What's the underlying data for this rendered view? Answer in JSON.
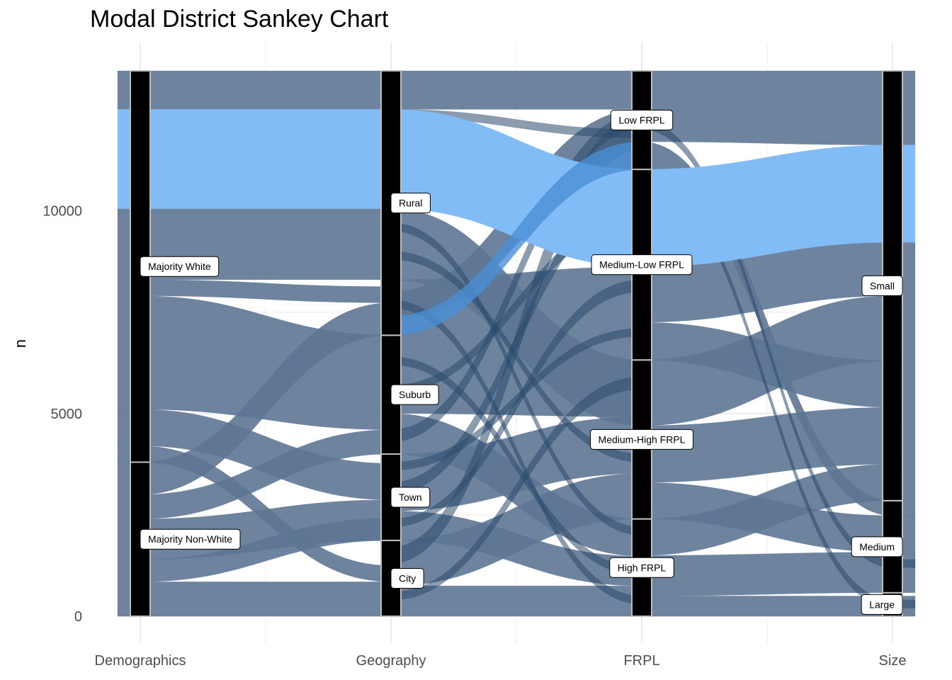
{
  "chart_data": {
    "type": "sankey",
    "title": "Modal District Sankey Chart",
    "xlabel": "",
    "ylabel": "n",
    "ylim": [
      0,
      13500
    ],
    "y_ticks": [
      0,
      5000,
      10000
    ],
    "axes": [
      "Demographics",
      "Geography",
      "FRPL",
      "Size"
    ],
    "total": 13450,
    "colors": {
      "flow": "#5d7594",
      "highlight": "#82bcf6",
      "highlight_frpl": "#4a8fd6",
      "node": "#000000",
      "node_border": "#bdbdbd",
      "grid": "#ebebeb"
    },
    "strata": [
      {
        "axis": "Demographics",
        "label": "Majority Non-White",
        "ymin": 0,
        "ymax": 3800
      },
      {
        "axis": "Demographics",
        "label": "Majority White",
        "ymin": 3800,
        "ymax": 13450
      },
      {
        "axis": "Geography",
        "label": "City",
        "ymin": 0,
        "ymax": 1870
      },
      {
        "axis": "Geography",
        "label": "Town",
        "ymin": 1870,
        "ymax": 4000
      },
      {
        "axis": "Geography",
        "label": "Suburb",
        "ymin": 4000,
        "ymax": 6930
      },
      {
        "axis": "Geography",
        "label": "Rural",
        "ymin": 6930,
        "ymax": 13450
      },
      {
        "axis": "FRPL",
        "label": "High FRPL",
        "ymin": 0,
        "ymax": 2400
      },
      {
        "axis": "FRPL",
        "label": "Medium-High FRPL",
        "ymin": 2400,
        "ymax": 6320
      },
      {
        "axis": "FRPL",
        "label": "Medium-Low FRPL",
        "ymin": 6320,
        "ymax": 11020
      },
      {
        "axis": "FRPL",
        "label": "Low FRPL",
        "ymin": 11020,
        "ymax": 13450
      },
      {
        "axis": "Size",
        "label": "Large",
        "ymin": 0,
        "ymax": 580
      },
      {
        "axis": "Size",
        "label": "Medium",
        "ymin": 580,
        "ymax": 2850
      },
      {
        "axis": "Size",
        "label": "Small",
        "ymin": 2850,
        "ymax": 13450
      }
    ],
    "flows": [
      {
        "from": [
          "Demographics",
          0,
          850
        ],
        "to": [
          "Geography",
          0,
          850
        ]
      },
      {
        "from": [
          "Demographics",
          850,
          1400
        ],
        "to": [
          "Geography",
          1870,
          2420
        ]
      },
      {
        "from": [
          "Demographics",
          1400,
          2400
        ],
        "to": [
          "Geography",
          1870,
          2870
        ]
      },
      {
        "from": [
          "Demographics",
          2400,
          3000
        ],
        "to": [
          "Geography",
          4000,
          4600
        ]
      },
      {
        "from": [
          "Demographics",
          3000,
          3800
        ],
        "to": [
          "Geography",
          6930,
          7730
        ]
      },
      {
        "from": [
          "Demographics",
          3800,
          4200
        ],
        "to": [
          "Geography",
          850,
          1250
        ]
      },
      {
        "from": [
          "Demographics",
          4200,
          5100
        ],
        "to": [
          "Geography",
          2870,
          3770
        ]
      },
      {
        "from": [
          "Demographics",
          5100,
          7900
        ],
        "to": [
          "Geography",
          4600,
          6930
        ]
      },
      {
        "from": [
          "Demographics",
          7900,
          8300
        ],
        "to": [
          "Geography",
          7730,
          8130
        ]
      },
      {
        "from": [
          "Demographics",
          8300,
          10050
        ],
        "to": [
          "Geography",
          8300,
          10050
        ]
      },
      {
        "from": [
          "Demographics",
          10050,
          12500
        ],
        "to": [
          "Geography",
          10050,
          12500
        ],
        "highlight": true
      },
      {
        "from": [
          "Demographics",
          12500,
          13450
        ],
        "to": [
          "Geography",
          12500,
          13450
        ]
      },
      {
        "from": [
          "Geography",
          0,
          750
        ],
        "to": [
          "FRPL",
          0,
          750
        ]
      },
      {
        "from": [
          "Geography",
          750,
          1870
        ],
        "to": [
          "FRPL",
          2400,
          3520
        ]
      },
      {
        "from": [
          "Geography",
          1870,
          2600
        ],
        "to": [
          "FRPL",
          750,
          1480
        ]
      },
      {
        "from": [
          "Geography",
          2600,
          4000
        ],
        "to": [
          "FRPL",
          3520,
          4920
        ]
      },
      {
        "from": [
          "Geography",
          4000,
          5000
        ],
        "to": [
          "FRPL",
          1480,
          2400
        ]
      },
      {
        "from": [
          "Geography",
          5000,
          6000
        ],
        "to": [
          "FRPL",
          4920,
          6320
        ]
      },
      {
        "from": [
          "Geography",
          6000,
          6930
        ],
        "to": [
          "FRPL",
          6320,
          7250
        ]
      },
      {
        "from": [
          "Geography",
          6930,
          8300
        ],
        "to": [
          "FRPL",
          7250,
          8620
        ]
      },
      {
        "from": [
          "Geography",
          8300,
          10050
        ],
        "to": [
          "FRPL",
          4700,
          6320
        ]
      },
      {
        "from": [
          "Geography",
          10050,
          12500
        ],
        "to": [
          "FRPL",
          8620,
          11020
        ],
        "highlight": true
      },
      {
        "from": [
          "Geography",
          12500,
          13450
        ],
        "to": [
          "FRPL",
          12500,
          13450
        ]
      },
      {
        "from": [
          "Geography",
          7300,
          8000
        ],
        "to": [
          "FRPL",
          11020,
          12500
        ]
      },
      {
        "from": [
          "FRPL",
          0,
          500
        ],
        "to": [
          "Size",
          0,
          500
        ]
      },
      {
        "from": [
          "FRPL",
          500,
          1500
        ],
        "to": [
          "Size",
          580,
          1580
        ]
      },
      {
        "from": [
          "FRPL",
          1500,
          2400
        ],
        "to": [
          "Size",
          2850,
          3750
        ]
      },
      {
        "from": [
          "FRPL",
          2400,
          3300
        ],
        "to": [
          "Size",
          1580,
          2480
        ]
      },
      {
        "from": [
          "FRPL",
          3300,
          4700
        ],
        "to": [
          "Size",
          3750,
          5150
        ]
      },
      {
        "from": [
          "FRPL",
          4700,
          6320
        ],
        "to": [
          "Size",
          6300,
          7900
        ]
      },
      {
        "from": [
          "FRPL",
          6320,
          7250
        ],
        "to": [
          "Size",
          5150,
          6300
        ]
      },
      {
        "from": [
          "FRPL",
          7250,
          8620
        ],
        "to": [
          "Size",
          7900,
          9220
        ]
      },
      {
        "from": [
          "FRPL",
          8620,
          11020
        ],
        "to": [
          "Size",
          9220,
          11620
        ],
        "highlight": true
      },
      {
        "from": [
          "FRPL",
          11020,
          11700
        ],
        "to": [
          "Size",
          2480,
          2850
        ]
      },
      {
        "from": [
          "FRPL",
          11700,
          13450
        ],
        "to": [
          "Size",
          11620,
          13450
        ]
      }
    ],
    "thin_flows": [
      {
        "from": [
          "Geography",
          1300,
          1700
        ],
        "to": [
          "FRPL",
          11500,
          12300
        ]
      },
      {
        "from": [
          "Geography",
          3000,
          3300
        ],
        "to": [
          "FRPL",
          10200,
          10600
        ]
      },
      {
        "from": [
          "Geography",
          4300,
          4600
        ],
        "to": [
          "FRPL",
          12000,
          12400
        ]
      },
      {
        "from": [
          "Geography",
          5500,
          5700
        ],
        "to": [
          "FRPL",
          9600,
          9900
        ]
      },
      {
        "from": [
          "Geography",
          9500,
          9700
        ],
        "to": [
          "FRPL",
          2000,
          2200
        ]
      },
      {
        "from": [
          "Geography",
          8800,
          9000
        ],
        "to": [
          "FRPL",
          3800,
          4000
        ]
      },
      {
        "from": [
          "Geography",
          7600,
          7800
        ],
        "to": [
          "FRPL",
          300,
          500
        ]
      },
      {
        "from": [
          "Geography",
          12300,
          12500
        ],
        "to": [
          "FRPL",
          11800,
          12000
        ]
      },
      {
        "from": [
          "Geography",
          2200,
          2400
        ],
        "to": [
          "FRPL",
          8000,
          8300
        ]
      },
      {
        "from": [
          "Geography",
          3600,
          3800
        ],
        "to": [
          "FRPL",
          6900,
          7100
        ]
      },
      {
        "from": [
          "Geography",
          6200,
          6400
        ],
        "to": [
          "FRPL",
          1000,
          1200
        ]
      },
      {
        "from": [
          "Geography",
          400,
          600
        ],
        "to": [
          "FRPL",
          5600,
          5900
        ]
      },
      {
        "from": [
          "FRPL",
          10800,
          11000
        ],
        "to": [
          "Size",
          200,
          400
        ]
      },
      {
        "from": [
          "FRPL",
          12000,
          12200
        ],
        "to": [
          "Size",
          1200,
          1400
        ]
      }
    ]
  }
}
